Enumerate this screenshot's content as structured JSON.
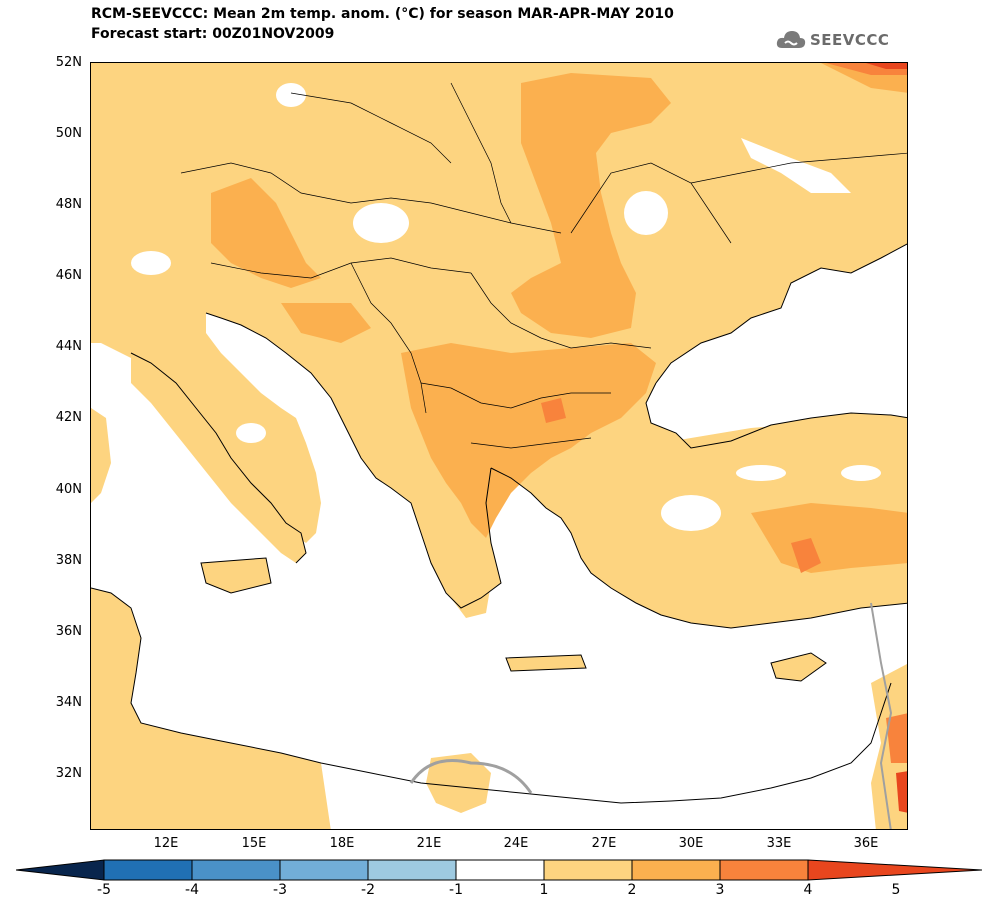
{
  "header": {
    "title_line1": "RCM-SEEVCCC: Mean 2m temp. anom. (°C) for season MAR-APR-MAY 2010",
    "title_line2": "Forecast start: 00Z01NOV2009",
    "logo_text": "SEEVCCC"
  },
  "map": {
    "lat_labels": [
      "52N",
      "50N",
      "48N",
      "46N",
      "44N",
      "42N",
      "40N",
      "38N",
      "36N",
      "34N",
      "32N"
    ],
    "lon_labels": [
      "12E",
      "15E",
      "18E",
      "21E",
      "24E",
      "27E",
      "30E",
      "33E",
      "36E"
    ],
    "colors": {
      "land_neutral": "#ffffff",
      "anom_1_2": "#fdd480",
      "anom_2_3": "#fbb04f",
      "anom_3_4": "#f8833c",
      "anom_4_5": "#e8461e",
      "border": "#000000",
      "outside_domain": "#a0a0a0"
    }
  },
  "colorbar": {
    "labels": [
      "-5",
      "-4",
      "-3",
      "-2",
      "-1",
      "1",
      "2",
      "3",
      "4",
      "5"
    ],
    "colors": [
      "#08306b",
      "#2070b4",
      "#4a91c8",
      "#72aed8",
      "#9ecae1",
      "#ffffff",
      "#fdd480",
      "#fbb04f",
      "#f8833c",
      "#e8461e",
      "#c41a1a",
      "#08254d"
    ]
  }
}
